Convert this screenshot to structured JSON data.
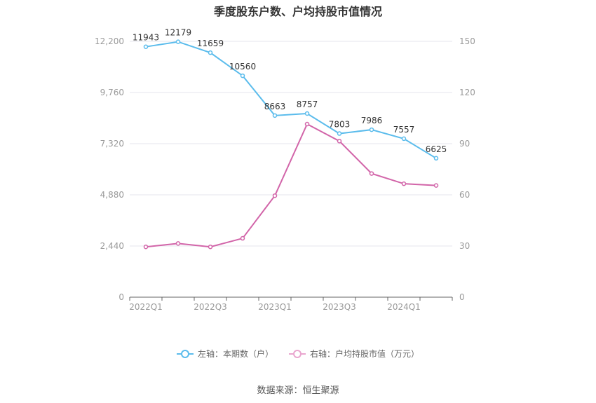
{
  "title": "季度股东户数、户均持股市值情况",
  "source": "数据来源：恒生聚源",
  "colors": {
    "series1": "#5bbcec",
    "series2": "#d265a9",
    "grid": "#e6e6ee",
    "axis": "#999999"
  },
  "chart_data": {
    "type": "line",
    "x": [
      "2022Q1",
      "2022Q2",
      "2022Q3",
      "2022Q4",
      "2023Q1",
      "2023Q2",
      "2023Q3",
      "2023Q4",
      "2024Q1",
      "2024Q2"
    ],
    "x_tick_labels": [
      "2022Q1",
      "",
      "2022Q3",
      "",
      "2023Q1",
      "",
      "2023Q3",
      "",
      "2024Q1",
      ""
    ],
    "y_left": {
      "range": [
        0,
        12200
      ],
      "ticks": [
        "0",
        "2,440",
        "4,880",
        "7,320",
        "9,760",
        "12,200"
      ]
    },
    "y_right": {
      "range": [
        0,
        150
      ],
      "ticks": [
        "0",
        "30",
        "60",
        "90",
        "120",
        "150"
      ]
    },
    "series": [
      {
        "name": "左轴：本期数（户）",
        "axis": "left",
        "values": [
          11943,
          12179,
          11659,
          10560,
          8663,
          8757,
          7803,
          7986,
          7557,
          6625
        ],
        "labels": [
          "11943",
          "12179",
          "11659",
          "10560",
          "8663",
          "8757",
          "7803",
          "7986",
          "7557",
          "6625"
        ]
      },
      {
        "name": "右轴：户均持股市值（万元）",
        "axis": "right",
        "values": [
          29.5,
          31.5,
          29.5,
          34.5,
          59.5,
          101.5,
          91.5,
          72.5,
          66.5,
          65.5
        ]
      }
    ],
    "grid": true,
    "legend_position": "bottom"
  }
}
